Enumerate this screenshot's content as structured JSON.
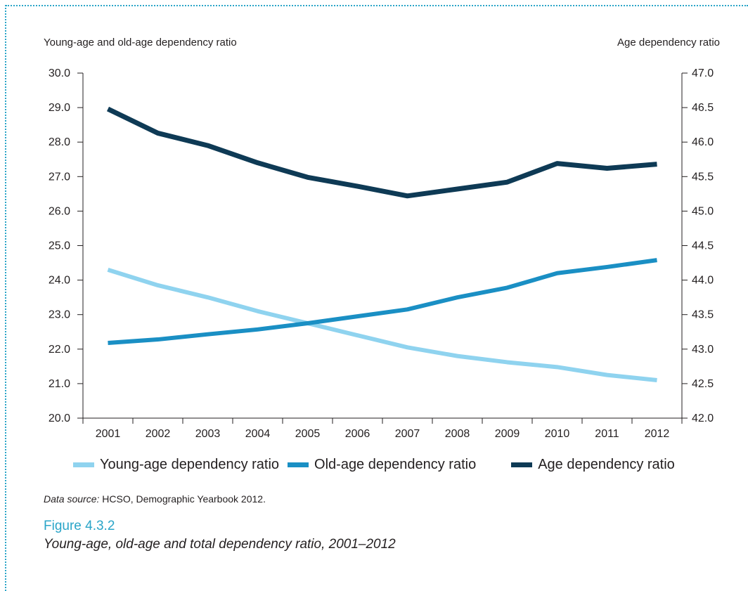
{
  "colors": {
    "young": "#8fd3ef",
    "old": "#1a8fc4",
    "total": "#0e3a55",
    "accent": "#2aa5c8",
    "axis": "#231f20"
  },
  "legend": {
    "young": "Young-age dependency ratio",
    "old": "Old-age dependency ratio",
    "total": "Age dependency ratio"
  },
  "source": {
    "label": "Data source:",
    "text": " HCSO, Demographic Yearbook 2012."
  },
  "figure": {
    "number": "Figure 4.3.2",
    "title": "Young-age, old-age and total dependency ratio, 2001–2012"
  },
  "chart_data": {
    "type": "line",
    "x": [
      "2001",
      "2002",
      "2003",
      "2004",
      "2005",
      "2006",
      "2007",
      "2008",
      "2009",
      "2010",
      "2011",
      "2012"
    ],
    "y_left_label": "Young-age and old-age dependency ratio",
    "y_right_label": "Age dependency ratio",
    "y_left_range": [
      20.0,
      30.0
    ],
    "y_right_range": [
      42.0,
      47.0
    ],
    "y_left_ticks": [
      "20.0",
      "21.0",
      "22.0",
      "23.0",
      "24.0",
      "25.0",
      "26.0",
      "27.0",
      "28.0",
      "29.0",
      "30.0"
    ],
    "y_right_ticks": [
      "42.0",
      "42.5",
      "43.0",
      "43.5",
      "44.0",
      "44.5",
      "45.0",
      "45.5",
      "46.0",
      "46.5",
      "47.0"
    ],
    "grid": false,
    "legend_position": "bottom",
    "series": [
      {
        "key": "young",
        "name": "Young-age dependency ratio",
        "axis": "left",
        "values": [
          24.3,
          23.85,
          23.5,
          23.1,
          22.75,
          22.4,
          22.05,
          21.8,
          21.62,
          21.48,
          21.25,
          21.1
        ]
      },
      {
        "key": "old",
        "name": "Old-age dependency ratio",
        "axis": "left",
        "values": [
          22.18,
          22.28,
          22.43,
          22.57,
          22.75,
          22.95,
          23.15,
          23.5,
          23.78,
          24.2,
          24.38,
          24.58
        ]
      },
      {
        "key": "total",
        "name": "Age dependency ratio",
        "axis": "right",
        "values": [
          46.48,
          46.13,
          45.95,
          45.7,
          45.49,
          45.36,
          45.22,
          45.32,
          45.42,
          45.69,
          45.62,
          45.68
        ]
      }
    ]
  }
}
